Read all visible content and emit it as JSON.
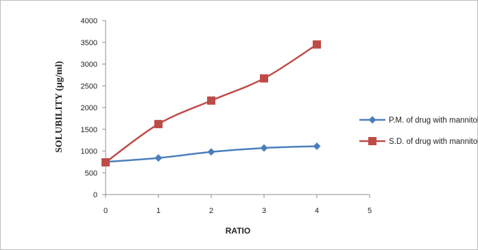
{
  "chart_data": {
    "type": "line",
    "xlabel": "RATIO",
    "ylabel": "SOLUBILITY (µg/ml)",
    "xlim": [
      0,
      5
    ],
    "ylim": [
      0,
      4000
    ],
    "x_ticks": [
      0,
      1,
      2,
      3,
      4,
      5
    ],
    "y_ticks": [
      0,
      500,
      1000,
      1500,
      2000,
      2500,
      3000,
      3500,
      4000
    ],
    "grid": false,
    "legend_position": "right",
    "series": [
      {
        "name": "P.M. of drug with mannitol",
        "color": "#4a7ebb",
        "marker": "diamond",
        "x": [
          0,
          1,
          2,
          3,
          4
        ],
        "values": [
          750,
          840,
          980,
          1070,
          1110
        ]
      },
      {
        "name": "S.D. of drug with mannitol",
        "color": "#be4b48",
        "marker": "square",
        "x": [
          0,
          1,
          2,
          3,
          4
        ],
        "values": [
          740,
          1620,
          2160,
          2670,
          3450
        ]
      }
    ]
  }
}
